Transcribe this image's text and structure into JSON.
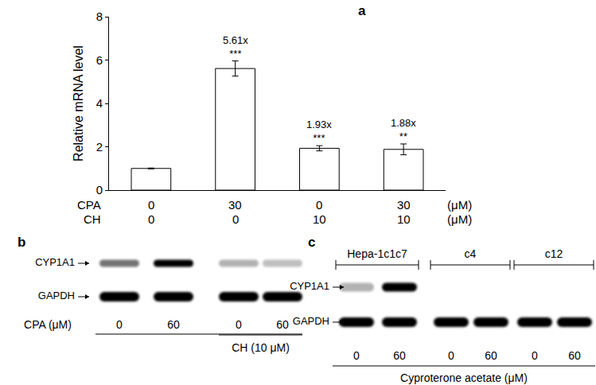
{
  "chart_data": {
    "type": "bar",
    "panel_label": "a",
    "y_label": "Relative mRNA level",
    "categories": [
      null,
      null,
      null,
      null
    ],
    "values": [
      1,
      5.61,
      1.93,
      1.88
    ],
    "errors": [
      0.02,
      0.35,
      0.12,
      0.25
    ],
    "value_labels": [
      null,
      "5.61x",
      "1.93x",
      "1.88x"
    ],
    "significance": [
      null,
      "***",
      "***",
      "**"
    ],
    "treatments": [
      {
        "name": "CPA",
        "values": [
          0,
          30,
          0,
          30
        ],
        "unit": "(μM)"
      },
      {
        "name": "CH",
        "values": [
          0,
          0,
          10,
          10
        ],
        "unit": "(μM)"
      }
    ],
    "colors": [
      "#ffffff",
      "#ffffff",
      "#ffffff",
      "#ffffff"
    ],
    "data_labels": true,
    "ylim": [
      0,
      8
    ],
    "yticks": [
      0,
      2,
      4,
      6,
      8
    ],
    "grid": false
  },
  "blots": [
    {
      "panel_label": "b",
      "rows": [
        {
          "name": "CYP1A1",
          "intensity": [
            0.55,
            1,
            0.3,
            0.25
          ]
        },
        {
          "name": "GAPDH",
          "intensity": [
            1,
            1,
            1,
            1
          ]
        }
      ],
      "lanes": {
        "name": "CPA (μM)",
        "values": [
          0,
          60,
          0,
          60
        ]
      },
      "bottom_groups": [
        {
          "name": "CH (10 μM)",
          "lanes": [
            2,
            3
          ]
        }
      ]
    },
    {
      "panel_label": "c",
      "top_groups": [
        {
          "name": "Hepa-1c1c7",
          "lanes": [
            0,
            1
          ]
        },
        {
          "name": "c4",
          "lanes": [
            2,
            3
          ]
        },
        {
          "name": "c12",
          "lanes": [
            4,
            5
          ]
        }
      ],
      "rows": [
        {
          "name": "CYP1A1",
          "intensity": [
            0.3,
            1,
            0,
            0,
            0,
            0
          ]
        },
        {
          "name": "GAPDH",
          "intensity": [
            1,
            1,
            1,
            1,
            1,
            1
          ]
        }
      ],
      "lanes": {
        "name": "Cyproterone acetate (μM)",
        "values": [
          0,
          60,
          0,
          60,
          0,
          60
        ]
      }
    }
  ]
}
